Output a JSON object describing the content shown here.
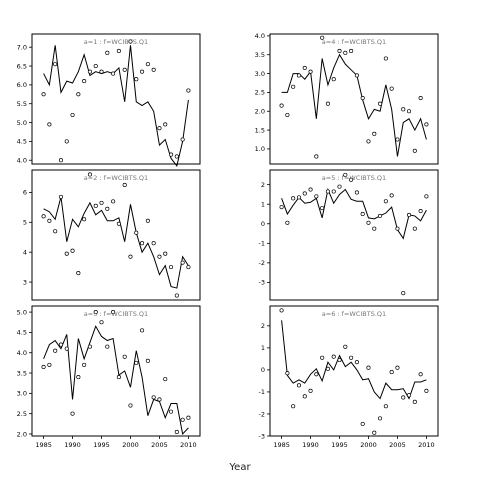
{
  "figure": {
    "xlabel": "Year"
  },
  "chart_data": [
    {
      "type": "line",
      "title": "a=1 : f=WCIBTS.Q1",
      "xlim": [
        1983,
        2012
      ],
      "ylim": [
        3.9,
        7.35
      ],
      "xticks": [],
      "yticks": [
        "4.0",
        "4.5",
        "5.0",
        "5.5",
        "6.0",
        "6.5",
        "7.0"
      ],
      "yticks_values": [
        4.0,
        4.5,
        5.0,
        5.5,
        6.0,
        6.5,
        7.0
      ],
      "line": {
        "x": [
          1985,
          1986,
          1987,
          1988,
          1989,
          1990,
          1991,
          1992,
          1993,
          1994,
          1995,
          1996,
          1997,
          1998,
          1999,
          2000,
          2001,
          2002,
          2003,
          2004,
          2005,
          2006,
          2007,
          2008,
          2009,
          2010
        ],
        "y": [
          6.3,
          6.0,
          7.05,
          5.8,
          6.1,
          6.05,
          6.35,
          6.8,
          6.25,
          6.35,
          6.3,
          6.35,
          6.3,
          6.45,
          5.55,
          7.05,
          5.55,
          5.45,
          5.55,
          5.3,
          4.4,
          4.55,
          4.05,
          3.85,
          4.5,
          5.6
        ]
      },
      "points": {
        "x": [
          1985,
          1986,
          1987,
          1988,
          1989,
          1990,
          1991,
          1992,
          1993,
          1994,
          1995,
          1996,
          1997,
          1998,
          1999,
          2000,
          2001,
          2002,
          2003,
          2004,
          2005,
          2006,
          2007,
          2008,
          2009,
          2010
        ],
        "y": [
          5.75,
          4.95,
          6.55,
          4.0,
          4.5,
          5.2,
          5.75,
          6.1,
          6.35,
          6.5,
          6.35,
          6.85,
          6.3,
          6.9,
          6.4,
          7.15,
          6.15,
          6.35,
          6.55,
          6.4,
          4.85,
          4.95,
          4.15,
          4.1,
          4.55,
          5.85
        ]
      }
    },
    {
      "type": "line",
      "title": "a=4 : f=WCIBTS.Q1",
      "xlim": [
        1983,
        2012
      ],
      "ylim": [
        0.6,
        4.05
      ],
      "xticks": [],
      "yticks": [
        "1.0",
        "1.5",
        "2.0",
        "2.5",
        "3.0",
        "3.5",
        "4.0"
      ],
      "yticks_values": [
        1.0,
        1.5,
        2.0,
        2.5,
        3.0,
        3.5,
        4.0
      ],
      "line": {
        "x": [
          1985,
          1986,
          1987,
          1988,
          1989,
          1990,
          1991,
          1992,
          1993,
          1994,
          1995,
          1996,
          1997,
          1998,
          1999,
          2000,
          2001,
          2002,
          2003,
          2004,
          2005,
          2006,
          2007,
          2008,
          2009,
          2010
        ],
        "y": [
          2.5,
          2.5,
          3.0,
          3.0,
          2.85,
          3.05,
          1.8,
          3.4,
          2.7,
          3.15,
          3.5,
          3.25,
          3.1,
          2.95,
          2.3,
          1.8,
          2.05,
          2.0,
          2.7,
          2.05,
          0.8,
          1.7,
          1.8,
          1.5,
          1.8,
          1.25
        ]
      },
      "points": {
        "x": [
          1985,
          1986,
          1987,
          1988,
          1989,
          1990,
          1991,
          1992,
          1993,
          1994,
          1995,
          1996,
          1997,
          1998,
          1999,
          2000,
          2001,
          2002,
          2003,
          2004,
          2005,
          2006,
          2007,
          2008,
          2009,
          2010
        ],
        "y": [
          2.15,
          1.9,
          2.65,
          2.95,
          3.15,
          3.05,
          0.8,
          3.95,
          2.2,
          2.85,
          3.6,
          3.55,
          3.6,
          2.95,
          2.35,
          1.2,
          1.4,
          2.2,
          3.4,
          2.6,
          1.25,
          2.05,
          2.0,
          0.95,
          2.35,
          1.65
        ]
      }
    },
    {
      "type": "line",
      "title": "a=2 : f=WCIBTS.Q1",
      "xlim": [
        1983,
        2012
      ],
      "ylim": [
        2.4,
        6.75
      ],
      "xticks": [],
      "yticks": [
        "3",
        "4",
        "5",
        "6"
      ],
      "yticks_values": [
        3,
        4,
        5,
        6
      ],
      "line": {
        "x": [
          1985,
          1986,
          1987,
          1988,
          1989,
          1990,
          1991,
          1992,
          1993,
          1994,
          1995,
          1996,
          1997,
          1998,
          1999,
          2000,
          2001,
          2002,
          2003,
          2004,
          2005,
          2006,
          2007,
          2008,
          2009,
          2010
        ],
        "y": [
          5.45,
          5.35,
          5.1,
          5.85,
          4.35,
          5.1,
          4.85,
          5.3,
          5.65,
          5.25,
          5.4,
          5.05,
          5.05,
          5.15,
          4.35,
          5.6,
          4.65,
          4.0,
          4.3,
          3.85,
          3.25,
          3.55,
          2.85,
          2.8,
          3.85,
          3.55
        ]
      },
      "points": {
        "x": [
          1985,
          1986,
          1987,
          1988,
          1989,
          1990,
          1991,
          1992,
          1993,
          1994,
          1995,
          1996,
          1997,
          1998,
          1999,
          2000,
          2001,
          2002,
          2003,
          2004,
          2005,
          2006,
          2007,
          2008,
          2009,
          2010
        ],
        "y": [
          5.2,
          5.05,
          4.7,
          5.85,
          3.95,
          4.05,
          3.3,
          5.1,
          6.6,
          5.55,
          5.65,
          5.45,
          5.7,
          4.95,
          6.25,
          3.85,
          4.65,
          4.3,
          5.05,
          4.3,
          3.85,
          3.95,
          3.5,
          2.55,
          3.65,
          3.5
        ]
      }
    },
    {
      "type": "line",
      "title": "a=5 : f=WCIBTS.Q1",
      "xlim": [
        1983,
        2012
      ],
      "ylim": [
        -3.9,
        2.75
      ],
      "xticks": [],
      "yticks": [
        "-3",
        "-2",
        "-1",
        "0",
        "1",
        "2"
      ],
      "yticks_values": [
        -3,
        -2,
        -1,
        0,
        1,
        2
      ],
      "line": {
        "x": [
          1985,
          1986,
          1987,
          1988,
          1989,
          1990,
          1991,
          1992,
          1993,
          1994,
          1995,
          1996,
          1997,
          1998,
          1999,
          2000,
          2001,
          2002,
          2003,
          2004,
          2005,
          2006,
          2007,
          2008,
          2009,
          2010
        ],
        "y": [
          1.3,
          0.5,
          0.95,
          1.35,
          1.05,
          1.1,
          1.3,
          0.3,
          1.75,
          1.05,
          1.5,
          1.75,
          1.25,
          1.15,
          1.15,
          0.3,
          0.25,
          0.4,
          0.55,
          0.85,
          -0.3,
          -0.75,
          0.45,
          0.4,
          0.15,
          0.7
        ]
      },
      "points": {
        "x": [
          1985,
          1986,
          1987,
          1988,
          1989,
          1990,
          1991,
          1992,
          1993,
          1994,
          1995,
          1996,
          1997,
          1998,
          1999,
          2000,
          2001,
          2002,
          2003,
          2004,
          2005,
          2006,
          2007,
          2008,
          2009,
          2010
        ],
        "y": [
          0.85,
          0.05,
          1.3,
          1.35,
          1.55,
          1.75,
          1.4,
          0.8,
          1.65,
          1.65,
          1.9,
          2.5,
          2.25,
          1.6,
          0.5,
          0.05,
          -0.25,
          0.4,
          1.15,
          1.45,
          -0.25,
          -3.55,
          0.45,
          -0.25,
          0.65,
          1.4
        ]
      }
    },
    {
      "type": "line",
      "title": "a=3 : f=WCIBTS.Q1",
      "xlim": [
        1983,
        2012
      ],
      "ylim": [
        1.95,
        5.15
      ],
      "xticks": [
        "1985",
        "1990",
        "1995",
        "2000",
        "2005",
        "2010"
      ],
      "yticks": [
        "2.0",
        "2.5",
        "3.0",
        "3.5",
        "4.0",
        "4.5",
        "5.0"
      ],
      "yticks_values": [
        2.0,
        2.5,
        3.0,
        3.5,
        4.0,
        4.5,
        5.0
      ],
      "xticks_values": [
        1985,
        1990,
        1995,
        2000,
        2005,
        2010
      ],
      "line": {
        "x": [
          1985,
          1986,
          1987,
          1988,
          1989,
          1990,
          1991,
          1992,
          1993,
          1994,
          1995,
          1996,
          1997,
          1998,
          1999,
          2000,
          2001,
          2002,
          2003,
          2004,
          2005,
          2006,
          2007,
          2008,
          2009,
          2010
        ],
        "y": [
          3.85,
          4.2,
          4.3,
          4.1,
          4.45,
          2.85,
          4.35,
          3.85,
          4.25,
          4.65,
          4.4,
          4.3,
          4.35,
          3.45,
          3.55,
          3.15,
          4.05,
          3.4,
          2.45,
          2.85,
          2.8,
          2.4,
          2.75,
          2.75,
          2.0,
          2.15
        ]
      },
      "points": {
        "x": [
          1985,
          1986,
          1987,
          1988,
          1989,
          1990,
          1991,
          1992,
          1993,
          1994,
          1995,
          1996,
          1997,
          1998,
          1999,
          2000,
          2001,
          2002,
          2003,
          2004,
          2005,
          2006,
          2007,
          2008,
          2009,
          2010
        ],
        "y": [
          3.65,
          3.7,
          4.05,
          4.2,
          4.1,
          2.5,
          3.4,
          3.7,
          4.15,
          5.0,
          4.75,
          4.15,
          5.0,
          3.4,
          3.9,
          2.7,
          3.75,
          4.55,
          3.8,
          2.9,
          2.85,
          3.35,
          2.55,
          2.05,
          2.35,
          2.4
        ]
      }
    },
    {
      "type": "line",
      "title": "a=6 : f=WCIBTS.Q1",
      "xlim": [
        1983,
        2012
      ],
      "ylim": [
        -3.0,
        2.9
      ],
      "xticks": [
        "1985",
        "1990",
        "1995",
        "2000",
        "2005",
        "2010"
      ],
      "yticks": [
        "-3",
        "-2",
        "-1",
        "0",
        "1",
        "2"
      ],
      "yticks_values": [
        -3,
        -2,
        -1,
        0,
        1,
        2
      ],
      "xticks_values": [
        1985,
        1990,
        1995,
        2000,
        2005,
        2010
      ],
      "line": {
        "x": [
          1985,
          1986,
          1987,
          1988,
          1989,
          1990,
          1991,
          1992,
          1993,
          1994,
          1995,
          1996,
          1997,
          1998,
          1999,
          2000,
          2001,
          2002,
          2003,
          2004,
          2005,
          2006,
          2007,
          2008,
          2009,
          2010
        ],
        "y": [
          2.25,
          -0.25,
          -0.6,
          -0.45,
          -0.6,
          -0.2,
          0.05,
          -0.5,
          0.35,
          0.0,
          0.65,
          0.15,
          0.35,
          0.0,
          -0.45,
          -0.4,
          -1.0,
          -1.3,
          -0.6,
          -0.9,
          -0.9,
          -0.85,
          -1.3,
          -0.55,
          -0.55,
          -0.45
        ]
      },
      "points": {
        "x": [
          1985,
          1986,
          1987,
          1988,
          1989,
          1990,
          1991,
          1992,
          1993,
          1994,
          1995,
          1996,
          1997,
          1998,
          1999,
          2000,
          2001,
          2002,
          2003,
          2004,
          2005,
          2006,
          2007,
          2008,
          2009,
          2010
        ],
        "y": [
          2.7,
          -0.15,
          -1.65,
          -0.7,
          -1.2,
          -0.95,
          -0.2,
          0.55,
          0.05,
          0.6,
          0.45,
          1.05,
          0.55,
          0.35,
          -2.45,
          0.1,
          -2.85,
          -2.2,
          -1.65,
          -0.1,
          0.1,
          -1.25,
          -1.15,
          -1.45,
          -0.2,
          -0.95
        ]
      }
    }
  ]
}
